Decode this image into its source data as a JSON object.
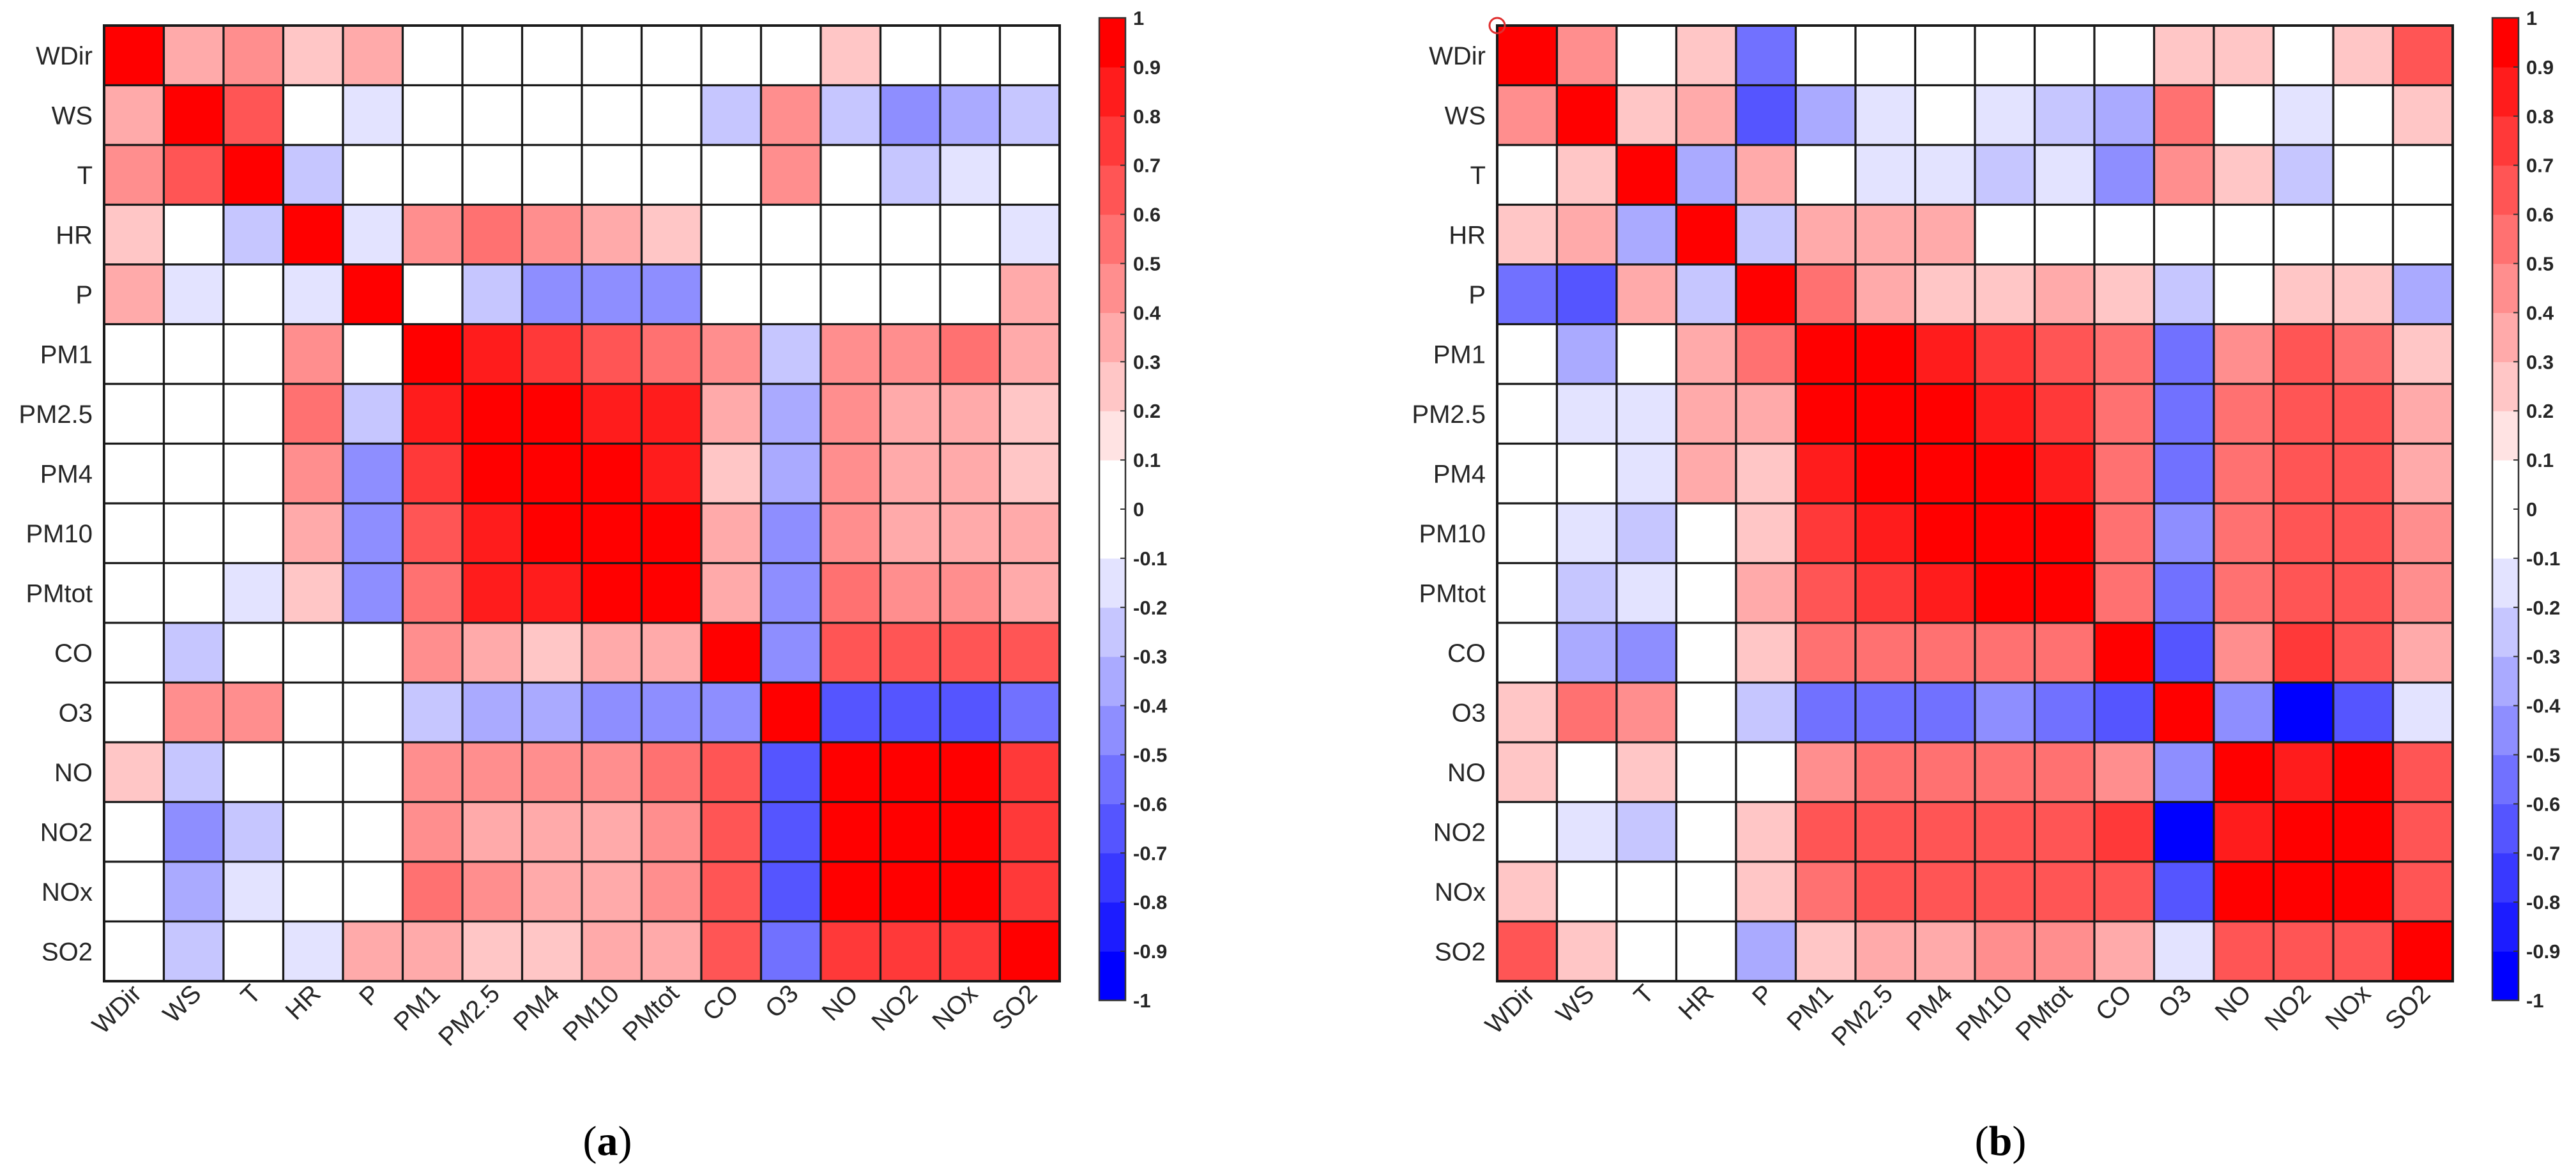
{
  "chart_data": [
    {
      "type": "heatmap",
      "panel_label": "a",
      "variables": [
        "WDir",
        "WS",
        "T",
        "HR",
        "P",
        "PM1",
        "PM2.5",
        "PM4",
        "PM10",
        "PMtot",
        "CO",
        "O3",
        "NO",
        "NO2",
        "NOx",
        "SO2"
      ],
      "values": [
        [
          1,
          0.3,
          0.4,
          0.2,
          0.3,
          0,
          0,
          0,
          0,
          -0.1,
          0,
          0,
          0.2,
          -0.1,
          -0.1,
          0
        ],
        [
          0.3,
          1,
          0.6,
          -0.1,
          -0.2,
          -0.1,
          0,
          0,
          0,
          0,
          -0.3,
          0.4,
          -0.3,
          -0.5,
          -0.4,
          -0.3
        ],
        [
          0.4,
          0.6,
          1,
          -0.3,
          0,
          -0.1,
          0,
          0,
          -0.1,
          -0.1,
          0,
          0.4,
          -0.1,
          -0.3,
          -0.2,
          -0.1
        ],
        [
          0.2,
          -0.1,
          -0.3,
          1,
          -0.2,
          0.4,
          0.5,
          0.4,
          0.3,
          0.2,
          0,
          0,
          0,
          -0.1,
          -0.1,
          -0.2
        ],
        [
          0.3,
          -0.2,
          0,
          -0.2,
          1,
          0,
          -0.3,
          -0.5,
          -0.5,
          -0.5,
          0,
          0,
          0,
          0,
          0,
          0.3
        ],
        [
          0,
          -0.1,
          -0.1,
          0.4,
          0,
          1,
          0.8,
          0.7,
          0.6,
          0.5,
          0.4,
          -0.3,
          0.4,
          0.4,
          0.5,
          0.3
        ],
        [
          0,
          0,
          0,
          0.5,
          -0.3,
          0.8,
          1,
          0.9,
          0.8,
          0.8,
          0.3,
          -0.4,
          0.4,
          0.3,
          0.3,
          0.2
        ],
        [
          0,
          0,
          0,
          0.4,
          -0.5,
          0.7,
          0.9,
          1,
          0.9,
          0.8,
          0.2,
          -0.4,
          0.4,
          0.3,
          0.3,
          0.2
        ],
        [
          0,
          0,
          -0.1,
          0.3,
          -0.5,
          0.6,
          0.8,
          0.9,
          1,
          0.9,
          0.3,
          -0.5,
          0.4,
          0.3,
          0.3,
          0.3
        ],
        [
          -0.1,
          0,
          -0.2,
          0.2,
          -0.5,
          0.5,
          0.8,
          0.8,
          0.9,
          1,
          0.3,
          -0.5,
          0.5,
          0.4,
          0.4,
          0.3
        ],
        [
          0,
          -0.3,
          0,
          0,
          0,
          0.4,
          0.3,
          0.2,
          0.3,
          0.3,
          1,
          -0.5,
          0.6,
          0.6,
          0.6,
          0.6
        ],
        [
          0,
          0.4,
          0.4,
          0,
          0,
          -0.3,
          -0.4,
          -0.4,
          -0.5,
          -0.5,
          -0.5,
          1,
          -0.7,
          -0.7,
          -0.7,
          -0.6
        ],
        [
          0.2,
          -0.3,
          -0.1,
          0,
          0,
          0.4,
          0.4,
          0.4,
          0.4,
          0.5,
          0.6,
          -0.7,
          1,
          0.9,
          0.9,
          0.7
        ],
        [
          -0.1,
          -0.5,
          -0.3,
          -0.1,
          0,
          0.4,
          0.3,
          0.3,
          0.3,
          0.4,
          0.6,
          -0.7,
          0.9,
          1,
          0.9,
          0.7
        ],
        [
          0,
          -0.4,
          -0.2,
          -0.1,
          0,
          0.5,
          0.4,
          0.3,
          0.3,
          0.4,
          0.6,
          -0.7,
          0.9,
          0.9,
          1,
          0.7
        ],
        [
          0,
          -0.3,
          -0.1,
          -0.2,
          0.3,
          0.3,
          0.2,
          0.2,
          0.3,
          0.3,
          0.6,
          -0.6,
          0.7,
          0.7,
          0.7,
          1
        ]
      ],
      "colorbar": {
        "min": -1,
        "max": 1,
        "ticks": [
          "1",
          "0.9",
          "0.8",
          "0.7",
          "0.6",
          "0.5",
          "0.4",
          "0.3",
          "0.2",
          "0.1",
          "0",
          "-0.1",
          "-0.2",
          "-0.3",
          "-0.4",
          "-0.5",
          "-0.6",
          "-0.7",
          "-0.8",
          "-0.9",
          "-1"
        ]
      }
    },
    {
      "type": "heatmap",
      "panel_label": "b",
      "variables": [
        "WDir",
        "WS",
        "T",
        "HR",
        "P",
        "PM1",
        "PM2.5",
        "PM4",
        "PM10",
        "PMtot",
        "CO",
        "O3",
        "NO",
        "NO2",
        "NOx",
        "SO2"
      ],
      "values": [
        [
          1,
          0.4,
          -0.1,
          0.2,
          -0.6,
          -0.1,
          0,
          0,
          0,
          0,
          0,
          0.2,
          0.2,
          0,
          0.2,
          0.6
        ],
        [
          0.4,
          1,
          0.2,
          0.3,
          -0.7,
          -0.4,
          -0.2,
          -0.1,
          -0.2,
          -0.3,
          -0.4,
          0.5,
          0,
          -0.2,
          -0.1,
          0.2
        ],
        [
          -0.1,
          0.2,
          1,
          -0.4,
          0.3,
          -0.1,
          -0.2,
          -0.2,
          -0.3,
          -0.2,
          -0.5,
          0.4,
          0.2,
          -0.3,
          -0.1,
          0
        ],
        [
          0.2,
          0.3,
          -0.4,
          1,
          -0.3,
          0.3,
          0.3,
          0.3,
          0,
          -0.1,
          0,
          0,
          -0.1,
          0,
          0,
          0
        ],
        [
          -0.6,
          -0.7,
          0.3,
          -0.3,
          1,
          0.5,
          0.3,
          0.2,
          0.2,
          0.3,
          0.2,
          -0.3,
          0,
          0.2,
          0.2,
          -0.4
        ],
        [
          -0.1,
          -0.4,
          -0.1,
          0.3,
          0.5,
          1,
          0.9,
          0.8,
          0.7,
          0.6,
          0.5,
          -0.6,
          0.4,
          0.6,
          0.5,
          0.2
        ],
        [
          0,
          -0.2,
          -0.2,
          0.3,
          0.3,
          0.9,
          1,
          0.9,
          0.8,
          0.7,
          0.5,
          -0.6,
          0.5,
          0.6,
          0.6,
          0.3
        ],
        [
          0,
          -0.1,
          -0.2,
          0.3,
          0.2,
          0.8,
          0.9,
          1,
          0.9,
          0.8,
          0.5,
          -0.6,
          0.5,
          0.6,
          0.6,
          0.3
        ],
        [
          0,
          -0.2,
          -0.3,
          0,
          0.2,
          0.7,
          0.8,
          0.9,
          1,
          0.9,
          0.5,
          -0.5,
          0.5,
          0.6,
          0.6,
          0.4
        ],
        [
          0,
          -0.3,
          -0.2,
          -0.1,
          0.3,
          0.6,
          0.7,
          0.8,
          0.9,
          1,
          0.5,
          -0.6,
          0.5,
          0.6,
          0.6,
          0.4
        ],
        [
          0,
          -0.4,
          -0.5,
          0,
          0.2,
          0.5,
          0.5,
          0.5,
          0.5,
          0.5,
          1,
          -0.7,
          0.4,
          0.7,
          0.6,
          0.3
        ],
        [
          0.2,
          0.5,
          0.4,
          0,
          -0.3,
          -0.6,
          -0.6,
          -0.6,
          -0.5,
          -0.6,
          -0.7,
          1,
          -0.5,
          -0.9,
          -0.7,
          -0.2
        ],
        [
          0.2,
          0,
          0.2,
          -0.1,
          0,
          0.4,
          0.5,
          0.5,
          0.5,
          0.5,
          0.4,
          -0.5,
          1,
          0.8,
          0.9,
          0.6
        ],
        [
          0,
          -0.2,
          -0.3,
          0,
          0.2,
          0.6,
          0.6,
          0.6,
          0.6,
          0.6,
          0.7,
          -0.9,
          0.8,
          1,
          0.9,
          0.6
        ],
        [
          0.2,
          -0.1,
          -0.1,
          0,
          0.2,
          0.5,
          0.6,
          0.6,
          0.6,
          0.6,
          0.6,
          -0.7,
          0.9,
          0.9,
          1,
          0.6
        ],
        [
          0.6,
          0.2,
          0,
          0,
          -0.4,
          0.2,
          0.3,
          0.3,
          0.4,
          0.4,
          0.3,
          -0.2,
          0.6,
          0.6,
          0.6,
          1
        ]
      ],
      "colorbar": {
        "min": -1,
        "max": 1,
        "ticks": [
          "1",
          "0.9",
          "0.8",
          "0.7",
          "0.6",
          "0.5",
          "0.4",
          "0.3",
          "0.2",
          "0.1",
          "0",
          "-0.1",
          "-0.2",
          "-0.3",
          "-0.4",
          "-0.5",
          "-0.6",
          "-0.7",
          "-0.8",
          "-0.9",
          "-1"
        ]
      }
    }
  ]
}
